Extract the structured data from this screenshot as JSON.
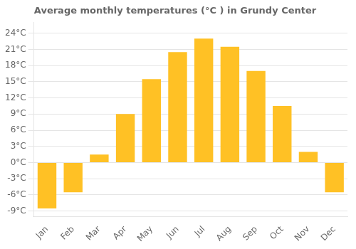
{
  "chart_data": {
    "type": "bar",
    "title": "Average monthly temperatures (°C ) in Grundy Center",
    "categories": [
      "Jan",
      "Feb",
      "Mar",
      "Apr",
      "May",
      "Jun",
      "Jul",
      "Aug",
      "Sep",
      "Oct",
      "Nov",
      "Dec"
    ],
    "values": [
      -8.5,
      -5.5,
      1.5,
      9.0,
      15.5,
      20.5,
      23.0,
      21.5,
      17.0,
      10.5,
      2.0,
      -5.5
    ],
    "color": "#FFC125",
    "ylim": [
      -10,
      26
    ],
    "yticks": [
      {
        "value": -9,
        "label": "-9°C"
      },
      {
        "value": -6,
        "label": "-6°C"
      },
      {
        "value": -3,
        "label": "-3°C"
      },
      {
        "value": 0,
        "label": "0°C"
      },
      {
        "value": 3,
        "label": "3°C"
      },
      {
        "value": 6,
        "label": "6°C"
      },
      {
        "value": 9,
        "label": "9°C"
      },
      {
        "value": 12,
        "label": "12°C"
      },
      {
        "value": 15,
        "label": "15°C"
      },
      {
        "value": 18,
        "label": "18°C"
      },
      {
        "value": 21,
        "label": "21°C"
      },
      {
        "value": 24,
        "label": "24°C"
      }
    ],
    "grid": true
  }
}
